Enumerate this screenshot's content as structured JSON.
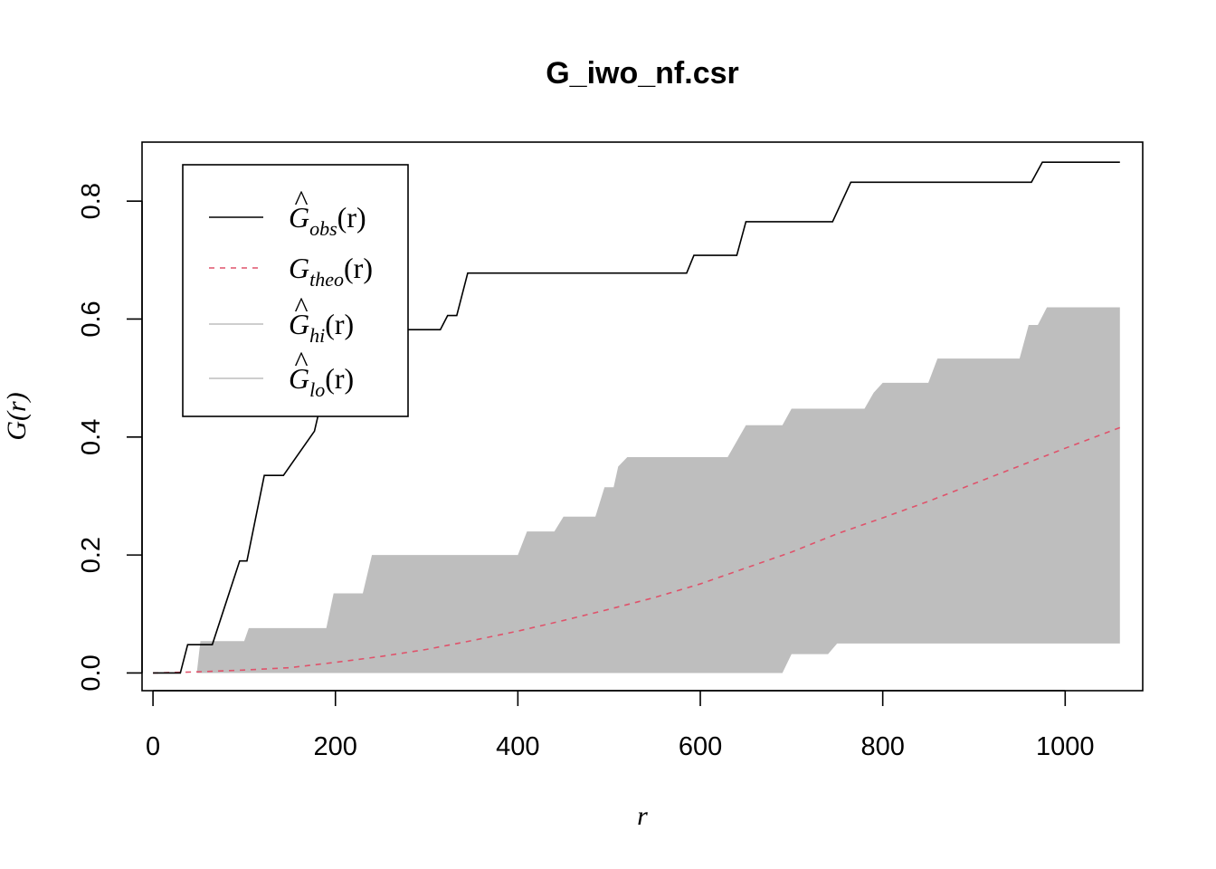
{
  "chart_data": {
    "type": "line",
    "title": "G_iwo_nf.csr",
    "xlabel": "r",
    "ylabel": "G(r)",
    "xlim": [
      -12,
      1085
    ],
    "ylim": [
      -0.03,
      0.9
    ],
    "x_ticks": [
      "0",
      "200",
      "400",
      "600",
      "800",
      "1000"
    ],
    "x_tick_values": [
      0,
      200,
      400,
      600,
      800,
      1000
    ],
    "y_ticks": [
      "0.0",
      "0.2",
      "0.4",
      "0.6",
      "0.8"
    ],
    "y_tick_values": [
      0,
      0.2,
      0.4,
      0.6,
      0.8
    ],
    "legend_position": "top-left",
    "legend": [
      {
        "sym": "G",
        "hat": true,
        "sub": "obs",
        "arg": "(r)",
        "color": "#000000",
        "dash": "solid"
      },
      {
        "sym": "G",
        "hat": false,
        "sub": "theo",
        "arg": "(r)",
        "color": "#DF536B",
        "dash": "dashed"
      },
      {
        "sym": "G",
        "hat": true,
        "sub": "hi",
        "arg": "(r)",
        "color": "#BEBEBE",
        "dash": "solid"
      },
      {
        "sym": "G",
        "hat": true,
        "sub": "lo",
        "arg": "(r)",
        "color": "#BEBEBE",
        "dash": "solid"
      }
    ],
    "series": [
      {
        "name": "obs",
        "color": "#000000",
        "x": [
          0,
          30,
          38,
          65,
          95,
          103,
          122,
          143,
          177,
          186,
          195,
          248,
          258,
          268,
          315,
          323,
          333,
          345,
          585,
          593,
          640,
          650,
          745,
          765,
          963,
          975,
          1060
        ],
        "y": [
          0,
          0,
          0.048,
          0.048,
          0.19,
          0.19,
          0.335,
          0.335,
          0.41,
          0.47,
          0.508,
          0.508,
          0.55,
          0.582,
          0.582,
          0.606,
          0.606,
          0.678,
          0.678,
          0.708,
          0.708,
          0.765,
          0.765,
          0.832,
          0.832,
          0.866,
          0.866
        ]
      },
      {
        "name": "theo",
        "color": "#DF536B",
        "x": [
          0,
          50,
          100,
          150,
          200,
          250,
          300,
          350,
          400,
          450,
          500,
          550,
          600,
          650,
          700,
          750,
          800,
          850,
          900,
          950,
          1000,
          1060
        ],
        "y": [
          0,
          0.002,
          0.005,
          0.009,
          0.018,
          0.028,
          0.04,
          0.055,
          0.071,
          0.089,
          0.108,
          0.128,
          0.151,
          0.178,
          0.205,
          0.236,
          0.263,
          0.291,
          0.321,
          0.351,
          0.381,
          0.416
        ]
      },
      {
        "name": "hi",
        "color": "#BEBEBE",
        "x": [
          48,
          52,
          100,
          105,
          190,
          198,
          230,
          240,
          400,
          410,
          440,
          450,
          485,
          495,
          505,
          510,
          520,
          630,
          640,
          650,
          690,
          700,
          780,
          790,
          800,
          850,
          860,
          950,
          960,
          970,
          980,
          1060
        ],
        "y": [
          0,
          0.054,
          0.054,
          0.076,
          0.076,
          0.135,
          0.135,
          0.2,
          0.2,
          0.24,
          0.24,
          0.265,
          0.265,
          0.315,
          0.315,
          0.35,
          0.366,
          0.366,
          0.393,
          0.42,
          0.42,
          0.448,
          0.448,
          0.475,
          0.492,
          0.492,
          0.533,
          0.533,
          0.59,
          0.59,
          0.62,
          0.62
        ]
      },
      {
        "name": "lo",
        "color": "#BEBEBE",
        "x": [
          48,
          690,
          700,
          740,
          750,
          1060
        ],
        "y": [
          0,
          0,
          0.032,
          0.032,
          0.05,
          0.05
        ]
      }
    ]
  }
}
